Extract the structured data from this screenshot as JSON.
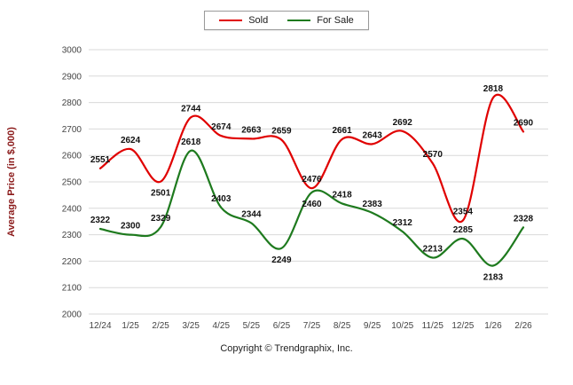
{
  "legend": {
    "items": [
      {
        "label": "Sold"
      },
      {
        "label": "For Sale"
      }
    ]
  },
  "chart_data": {
    "type": "line",
    "categories": [
      "12/24",
      "1/25",
      "2/25",
      "3/25",
      "4/25",
      "5/25",
      "6/25",
      "7/25",
      "8/25",
      "9/25",
      "10/25",
      "11/25",
      "12/25",
      "1/26",
      "2/26"
    ],
    "series": [
      {
        "name": "Sold",
        "color": "#e00000",
        "values": [
          2551,
          2624,
          2501,
          2744,
          2674,
          2663,
          2659,
          2476,
          2661,
          2643,
          2692,
          2570,
          2354,
          2818,
          2690
        ],
        "labels_below_indices": [
          2
        ]
      },
      {
        "name": "For Sale",
        "color": "#1e7a1e",
        "values": [
          2322,
          2300,
          2329,
          2618,
          2403,
          2344,
          2249,
          2460,
          2418,
          2383,
          2312,
          2213,
          2285,
          2183,
          2328
        ],
        "labels_below_indices": [
          6,
          7,
          13
        ]
      }
    ],
    "title": "",
    "xlabel": "",
    "ylabel": "Average Price (in $,000)",
    "ylim": [
      2000,
      3000
    ],
    "ytick_step": 100,
    "grid": true,
    "legend_position": "top"
  },
  "colors": {
    "sold": "#e00000",
    "for_sale": "#1e7a1e",
    "ylabel_text": "#8b1a1a",
    "gridline": "#d9d9d9",
    "tick_text": "#444444",
    "data_label_text": "#111111"
  },
  "footer": {
    "copyright": "Copyright © Trendgraphix, Inc."
  }
}
